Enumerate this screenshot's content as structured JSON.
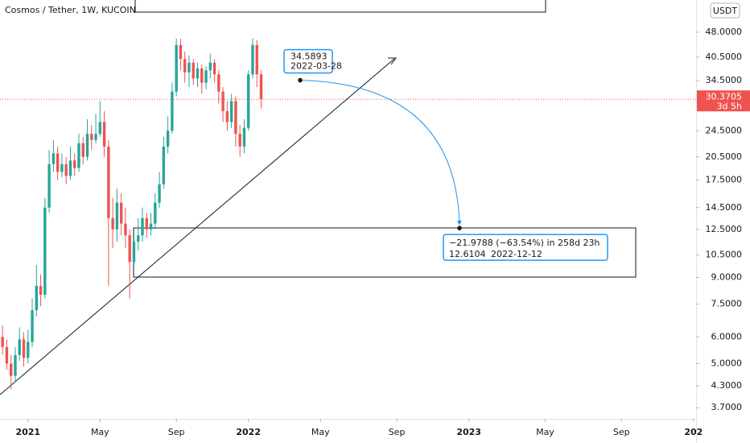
{
  "chart_data": {
    "type": "candlestick",
    "title": "Cosmos / Tether, 1W, KUCOIN",
    "currency": "USDT",
    "categories": [
      null,
      null,
      null,
      null,
      null,
      null,
      null,
      null,
      null,
      null,
      null,
      null,
      null,
      null,
      null,
      null,
      null,
      null,
      null,
      null,
      null,
      null,
      null,
      null,
      null,
      null,
      null,
      null,
      null,
      null,
      null,
      null,
      null,
      null,
      null,
      null,
      null,
      null,
      null,
      null,
      null,
      null,
      null,
      null,
      null,
      null,
      null,
      null,
      null,
      null,
      null,
      null,
      null,
      null,
      null,
      null,
      null,
      null,
      null,
      null,
      null,
      null
    ],
    "open": [
      6.0,
      5.6,
      5.0,
      4.6,
      5.3,
      5.9,
      5.2,
      5.8,
      7.2,
      8.5,
      8.0,
      14.5,
      19.5,
      21.0,
      18.5,
      19.5,
      18.0,
      20.0,
      19.0,
      22.5,
      20.5,
      24.0,
      23.0,
      24.0,
      26.0,
      22.0,
      13.5,
      12.5,
      15.0,
      13.0,
      12.0,
      10.0,
      11.5,
      12.0,
      13.5,
      12.5,
      13.0,
      15.0,
      17.0,
      22.0,
      24.5,
      32.0,
      44.0,
      40.0,
      36.5,
      39.0,
      35.0,
      37.5,
      34.0,
      37.0,
      39.0,
      36.0,
      32.0,
      28.0,
      26.0,
      30.0,
      24.0,
      22.0,
      25.0,
      36.0,
      44.0,
      36.0
    ],
    "high": [
      6.5,
      5.9,
      5.3,
      5.6,
      6.4,
      6.2,
      6.3,
      7.8,
      9.8,
      9.2,
      15.5,
      21.5,
      23.0,
      22.0,
      21.0,
      20.5,
      22.0,
      21.0,
      24.0,
      23.5,
      26.5,
      25.5,
      27.5,
      30.0,
      28.0,
      23.0,
      15.5,
      16.5,
      16.0,
      14.5,
      12.5,
      12.5,
      13.5,
      14.5,
      14.0,
      14.0,
      16.0,
      18.5,
      23.5,
      27.0,
      34.0,
      46.0,
      46.0,
      42.0,
      41.0,
      40.0,
      39.0,
      38.5,
      38.0,
      41.5,
      40.0,
      37.0,
      33.0,
      30.0,
      31.5,
      31.0,
      25.5,
      26.5,
      37.0,
      46.0,
      45.5,
      37.0
    ],
    "low": [
      5.3,
      4.8,
      4.2,
      4.4,
      5.1,
      4.9,
      5.0,
      5.6,
      6.9,
      7.4,
      7.8,
      14.0,
      18.5,
      17.5,
      17.8,
      17.0,
      17.5,
      18.0,
      18.5,
      19.5,
      20.0,
      21.5,
      22.5,
      23.5,
      20.5,
      8.5,
      11.0,
      11.5,
      12.0,
      11.0,
      7.8,
      9.2,
      10.8,
      11.5,
      11.8,
      12.0,
      12.5,
      14.5,
      16.5,
      21.0,
      24.0,
      31.0,
      37.0,
      34.0,
      33.0,
      33.5,
      33.0,
      31.5,
      32.5,
      35.0,
      34.0,
      29.5,
      26.0,
      24.5,
      25.0,
      22.0,
      20.5,
      21.0,
      24.5,
      35.0,
      33.0,
      28.5
    ],
    "close": [
      5.6,
      5.0,
      4.6,
      5.3,
      5.9,
      5.2,
      5.8,
      7.2,
      8.5,
      8.0,
      14.5,
      19.5,
      21.0,
      18.5,
      19.5,
      18.0,
      20.0,
      19.0,
      22.5,
      20.5,
      24.0,
      23.0,
      24.0,
      26.0,
      22.0,
      13.5,
      12.5,
      15.0,
      13.0,
      12.0,
      10.0,
      11.5,
      12.0,
      13.5,
      12.5,
      13.0,
      15.0,
      17.0,
      22.0,
      24.5,
      32.0,
      44.0,
      40.0,
      36.5,
      39.0,
      35.0,
      37.5,
      34.0,
      37.0,
      39.0,
      36.0,
      32.0,
      28.0,
      26.0,
      30.0,
      24.0,
      22.0,
      25.0,
      36.0,
      44.0,
      36.0,
      30.3705
    ],
    "up_color": "#26a69a",
    "down_color": "#ef5350",
    "log": true,
    "ylim": [
      3.43,
      59.8
    ],
    "yticks": [
      {
        "value": 48,
        "label": "48.0000"
      },
      {
        "value": 40.5,
        "label": "40.5000"
      },
      {
        "value": 34.5,
        "label": "34.5000"
      },
      {
        "value": 24.5,
        "label": "24.5000"
      },
      {
        "value": 20.5,
        "label": "20.5000"
      },
      {
        "value": 17.5,
        "label": "17.5000"
      },
      {
        "value": 14.5,
        "label": "14.5000"
      },
      {
        "value": 12.5,
        "label": "12.5000"
      },
      {
        "value": 10.5,
        "label": "10.5000"
      },
      {
        "value": 9,
        "label": "9.0000"
      },
      {
        "value": 7.5,
        "label": "7.5000"
      },
      {
        "value": 6,
        "label": "6.0000"
      },
      {
        "value": 5,
        "label": "5.0000"
      },
      {
        "value": 4.3,
        "label": "4.3000"
      },
      {
        "value": 3.7,
        "label": "3.7000"
      }
    ],
    "xlim": [
      -0.6,
      163.6
    ],
    "xticks": [
      {
        "value": 6,
        "label": "2021"
      },
      {
        "value": 23,
        "label": "May"
      },
      {
        "value": 41,
        "label": "Sep"
      },
      {
        "value": 58,
        "label": "2022"
      },
      {
        "value": 75,
        "label": "May"
      },
      {
        "value": 93,
        "label": "Sep"
      },
      {
        "value": 110,
        "label": "2023"
      },
      {
        "value": 128,
        "label": "May"
      },
      {
        "value": 146,
        "label": "Sep"
      },
      {
        "value": 163,
        "label": "202"
      }
    ],
    "last_price": 30.3705,
    "countdown": "3d 5h",
    "measure_start": {
      "price": 34.5893,
      "date": "2022-03-28"
    },
    "measure_end": {
      "price": 12.6104,
      "date": "2022-12-12",
      "change": "−21.9788 (−63.54%) in 258d 23h"
    }
  }
}
